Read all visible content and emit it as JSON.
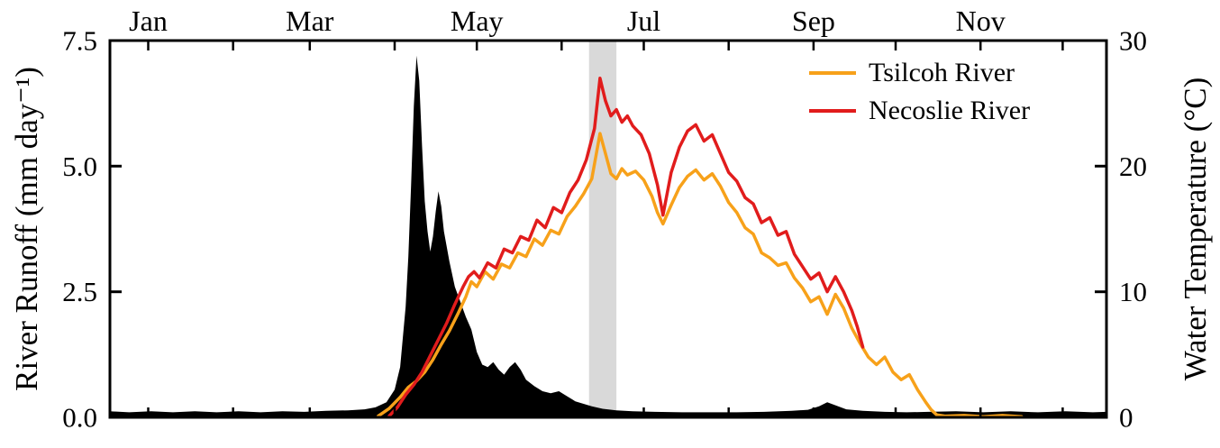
{
  "figure": {
    "background": "#ffffff",
    "frame_color": "#000000"
  },
  "chart_data": {
    "type": "line+area",
    "title": "",
    "x_axis": {
      "unit": "day_of_year",
      "range": [
        1,
        365
      ],
      "month_labels": [
        "Jan",
        "Mar",
        "May",
        "Jul",
        "Sep",
        "Nov"
      ],
      "month_label_days": [
        15,
        74,
        135,
        196,
        258,
        319
      ],
      "tick_days": [
        15,
        46,
        74,
        105,
        135,
        166,
        196,
        227,
        258,
        288,
        319,
        349
      ]
    },
    "left_axis": {
      "label": "River Runoff (mm day⁻¹)",
      "range": [
        0,
        7.5
      ],
      "ticks": [
        "0.0",
        "2.5",
        "5.0",
        "7.5"
      ],
      "tick_values": [
        0,
        2.5,
        5.0,
        7.5
      ],
      "grid": false
    },
    "right_axis": {
      "label": "Water Temperature (°C)",
      "range": [
        0,
        30
      ],
      "ticks": [
        "0",
        "10",
        "20",
        "30"
      ],
      "tick_values": [
        0,
        10,
        20,
        30
      ],
      "grid": false
    },
    "highlight_band": {
      "start_day": 176,
      "end_day": 186,
      "color": "#d9d9d9"
    },
    "runoff_area": {
      "name": "River Runoff",
      "color": "#000000",
      "axis": "left",
      "points": [
        [
          1,
          0.12
        ],
        [
          8,
          0.1
        ],
        [
          16,
          0.12
        ],
        [
          24,
          0.1
        ],
        [
          32,
          0.12
        ],
        [
          40,
          0.1
        ],
        [
          48,
          0.12
        ],
        [
          56,
          0.1
        ],
        [
          64,
          0.12
        ],
        [
          72,
          0.11
        ],
        [
          80,
          0.13
        ],
        [
          88,
          0.14
        ],
        [
          94,
          0.16
        ],
        [
          98,
          0.2
        ],
        [
          102,
          0.3
        ],
        [
          105,
          0.55
        ],
        [
          107,
          1.0
        ],
        [
          109,
          2.2
        ],
        [
          110,
          3.2
        ],
        [
          111,
          4.6
        ],
        [
          112,
          6.2
        ],
        [
          113,
          7.2
        ],
        [
          114,
          6.7
        ],
        [
          115,
          5.4
        ],
        [
          116,
          4.3
        ],
        [
          117,
          3.7
        ],
        [
          118,
          3.3
        ],
        [
          119,
          3.6
        ],
        [
          120,
          4.1
        ],
        [
          121,
          4.5
        ],
        [
          122,
          4.2
        ],
        [
          123,
          3.7
        ],
        [
          125,
          3.1
        ],
        [
          127,
          2.6
        ],
        [
          129,
          2.3
        ],
        [
          131,
          2.0
        ],
        [
          133,
          1.75
        ],
        [
          135,
          1.3
        ],
        [
          137,
          1.05
        ],
        [
          139,
          1.0
        ],
        [
          141,
          1.1
        ],
        [
          143,
          0.95
        ],
        [
          145,
          0.85
        ],
        [
          147,
          1.0
        ],
        [
          149,
          1.1
        ],
        [
          151,
          0.95
        ],
        [
          153,
          0.75
        ],
        [
          156,
          0.62
        ],
        [
          159,
          0.52
        ],
        [
          162,
          0.48
        ],
        [
          165,
          0.52
        ],
        [
          168,
          0.42
        ],
        [
          171,
          0.32
        ],
        [
          174,
          0.27
        ],
        [
          177,
          0.22
        ],
        [
          181,
          0.17
        ],
        [
          186,
          0.14
        ],
        [
          192,
          0.12
        ],
        [
          200,
          0.11
        ],
        [
          210,
          0.1
        ],
        [
          220,
          0.1
        ],
        [
          230,
          0.1
        ],
        [
          240,
          0.11
        ],
        [
          250,
          0.13
        ],
        [
          256,
          0.15
        ],
        [
          260,
          0.22
        ],
        [
          263,
          0.3
        ],
        [
          266,
          0.24
        ],
        [
          270,
          0.16
        ],
        [
          276,
          0.13
        ],
        [
          284,
          0.11
        ],
        [
          292,
          0.1
        ],
        [
          300,
          0.11
        ],
        [
          310,
          0.12
        ],
        [
          320,
          0.1
        ],
        [
          330,
          0.12
        ],
        [
          340,
          0.1
        ],
        [
          350,
          0.12
        ],
        [
          360,
          0.1
        ],
        [
          365,
          0.11
        ]
      ]
    },
    "series": [
      {
        "name": "Tsilcoh River",
        "color": "#F7A11A",
        "axis": "right",
        "points": [
          [
            99,
            0.1
          ],
          [
            103,
            0.7
          ],
          [
            107,
            1.6
          ],
          [
            110,
            2.4
          ],
          [
            113,
            2.9
          ],
          [
            116,
            3.6
          ],
          [
            119,
            4.6
          ],
          [
            122,
            5.8
          ],
          [
            125,
            6.9
          ],
          [
            128,
            8.2
          ],
          [
            131,
            9.6
          ],
          [
            133,
            10.8
          ],
          [
            135,
            10.4
          ],
          [
            138,
            11.6
          ],
          [
            141,
            11.0
          ],
          [
            144,
            12.2
          ],
          [
            147,
            11.9
          ],
          [
            150,
            13.1
          ],
          [
            153,
            12.8
          ],
          [
            156,
            14.2
          ],
          [
            159,
            13.7
          ],
          [
            162,
            14.9
          ],
          [
            165,
            14.6
          ],
          [
            168,
            16.0
          ],
          [
            171,
            16.8
          ],
          [
            174,
            17.8
          ],
          [
            177,
            19.0
          ],
          [
            180,
            22.6
          ],
          [
            182,
            21.0
          ],
          [
            184,
            19.4
          ],
          [
            186,
            19.0
          ],
          [
            188,
            19.8
          ],
          [
            190,
            19.3
          ],
          [
            193,
            19.6
          ],
          [
            196,
            18.9
          ],
          [
            199,
            17.6
          ],
          [
            201,
            16.3
          ],
          [
            203,
            15.4
          ],
          [
            206,
            16.9
          ],
          [
            209,
            18.3
          ],
          [
            212,
            19.2
          ],
          [
            215,
            19.7
          ],
          [
            218,
            18.9
          ],
          [
            221,
            19.4
          ],
          [
            224,
            18.4
          ],
          [
            227,
            17.1
          ],
          [
            230,
            16.3
          ],
          [
            233,
            15.1
          ],
          [
            236,
            14.6
          ],
          [
            239,
            13.1
          ],
          [
            242,
            12.7
          ],
          [
            245,
            12.1
          ],
          [
            248,
            12.3
          ],
          [
            251,
            11.1
          ],
          [
            254,
            10.3
          ],
          [
            257,
            9.2
          ],
          [
            260,
            9.6
          ],
          [
            263,
            8.2
          ],
          [
            266,
            9.8
          ],
          [
            269,
            8.7
          ],
          [
            272,
            7.1
          ],
          [
            275,
            5.9
          ],
          [
            278,
            4.8
          ],
          [
            281,
            4.2
          ],
          [
            284,
            4.8
          ],
          [
            287,
            3.6
          ],
          [
            290,
            3.0
          ],
          [
            293,
            3.4
          ],
          [
            296,
            2.2
          ],
          [
            299,
            1.2
          ],
          [
            301,
            0.6
          ],
          [
            303,
            0.2
          ],
          [
            306,
            0.1
          ],
          [
            313,
            0.15
          ],
          [
            320,
            0.05
          ],
          [
            327,
            0.15
          ],
          [
            334,
            0.05
          ]
        ]
      },
      {
        "name": "Necoslie River",
        "color": "#E11C1C",
        "axis": "right",
        "points": [
          [
            103,
            0.1
          ],
          [
            106,
            0.8
          ],
          [
            109,
            1.8
          ],
          [
            112,
            2.6
          ],
          [
            115,
            3.6
          ],
          [
            118,
            4.9
          ],
          [
            121,
            6.2
          ],
          [
            124,
            7.5
          ],
          [
            127,
            9.0
          ],
          [
            130,
            10.4
          ],
          [
            132,
            11.2
          ],
          [
            134,
            11.6
          ],
          [
            136,
            11.1
          ],
          [
            139,
            12.3
          ],
          [
            142,
            11.9
          ],
          [
            145,
            13.4
          ],
          [
            148,
            13.1
          ],
          [
            151,
            14.4
          ],
          [
            154,
            14.1
          ],
          [
            157,
            15.7
          ],
          [
            160,
            15.1
          ],
          [
            163,
            16.7
          ],
          [
            166,
            16.3
          ],
          [
            169,
            17.9
          ],
          [
            172,
            18.9
          ],
          [
            175,
            20.5
          ],
          [
            178,
            23.0
          ],
          [
            180,
            27.0
          ],
          [
            182,
            25.2
          ],
          [
            184,
            24.0
          ],
          [
            186,
            24.5
          ],
          [
            188,
            23.5
          ],
          [
            190,
            24.0
          ],
          [
            192,
            23.2
          ],
          [
            195,
            22.5
          ],
          [
            198,
            21.0
          ],
          [
            201,
            18.5
          ],
          [
            203,
            16.1
          ],
          [
            206,
            19.5
          ],
          [
            209,
            21.5
          ],
          [
            212,
            22.8
          ],
          [
            215,
            23.3
          ],
          [
            218,
            22.0
          ],
          [
            221,
            22.5
          ],
          [
            224,
            21.0
          ],
          [
            227,
            19.5
          ],
          [
            230,
            18.8
          ],
          [
            233,
            17.5
          ],
          [
            236,
            17.0
          ],
          [
            239,
            15.5
          ],
          [
            242,
            15.9
          ],
          [
            245,
            14.5
          ],
          [
            248,
            14.8
          ],
          [
            251,
            13.0
          ],
          [
            254,
            12.0
          ],
          [
            257,
            11.0
          ],
          [
            260,
            11.5
          ],
          [
            263,
            10.0
          ],
          [
            266,
            11.2
          ],
          [
            269,
            10.0
          ],
          [
            272,
            8.5
          ],
          [
            274,
            7.2
          ],
          [
            276,
            5.6
          ]
        ]
      }
    ],
    "legend": {
      "position": "top-right",
      "entries": [
        "Tsilcoh River",
        "Necoslie River"
      ]
    }
  }
}
